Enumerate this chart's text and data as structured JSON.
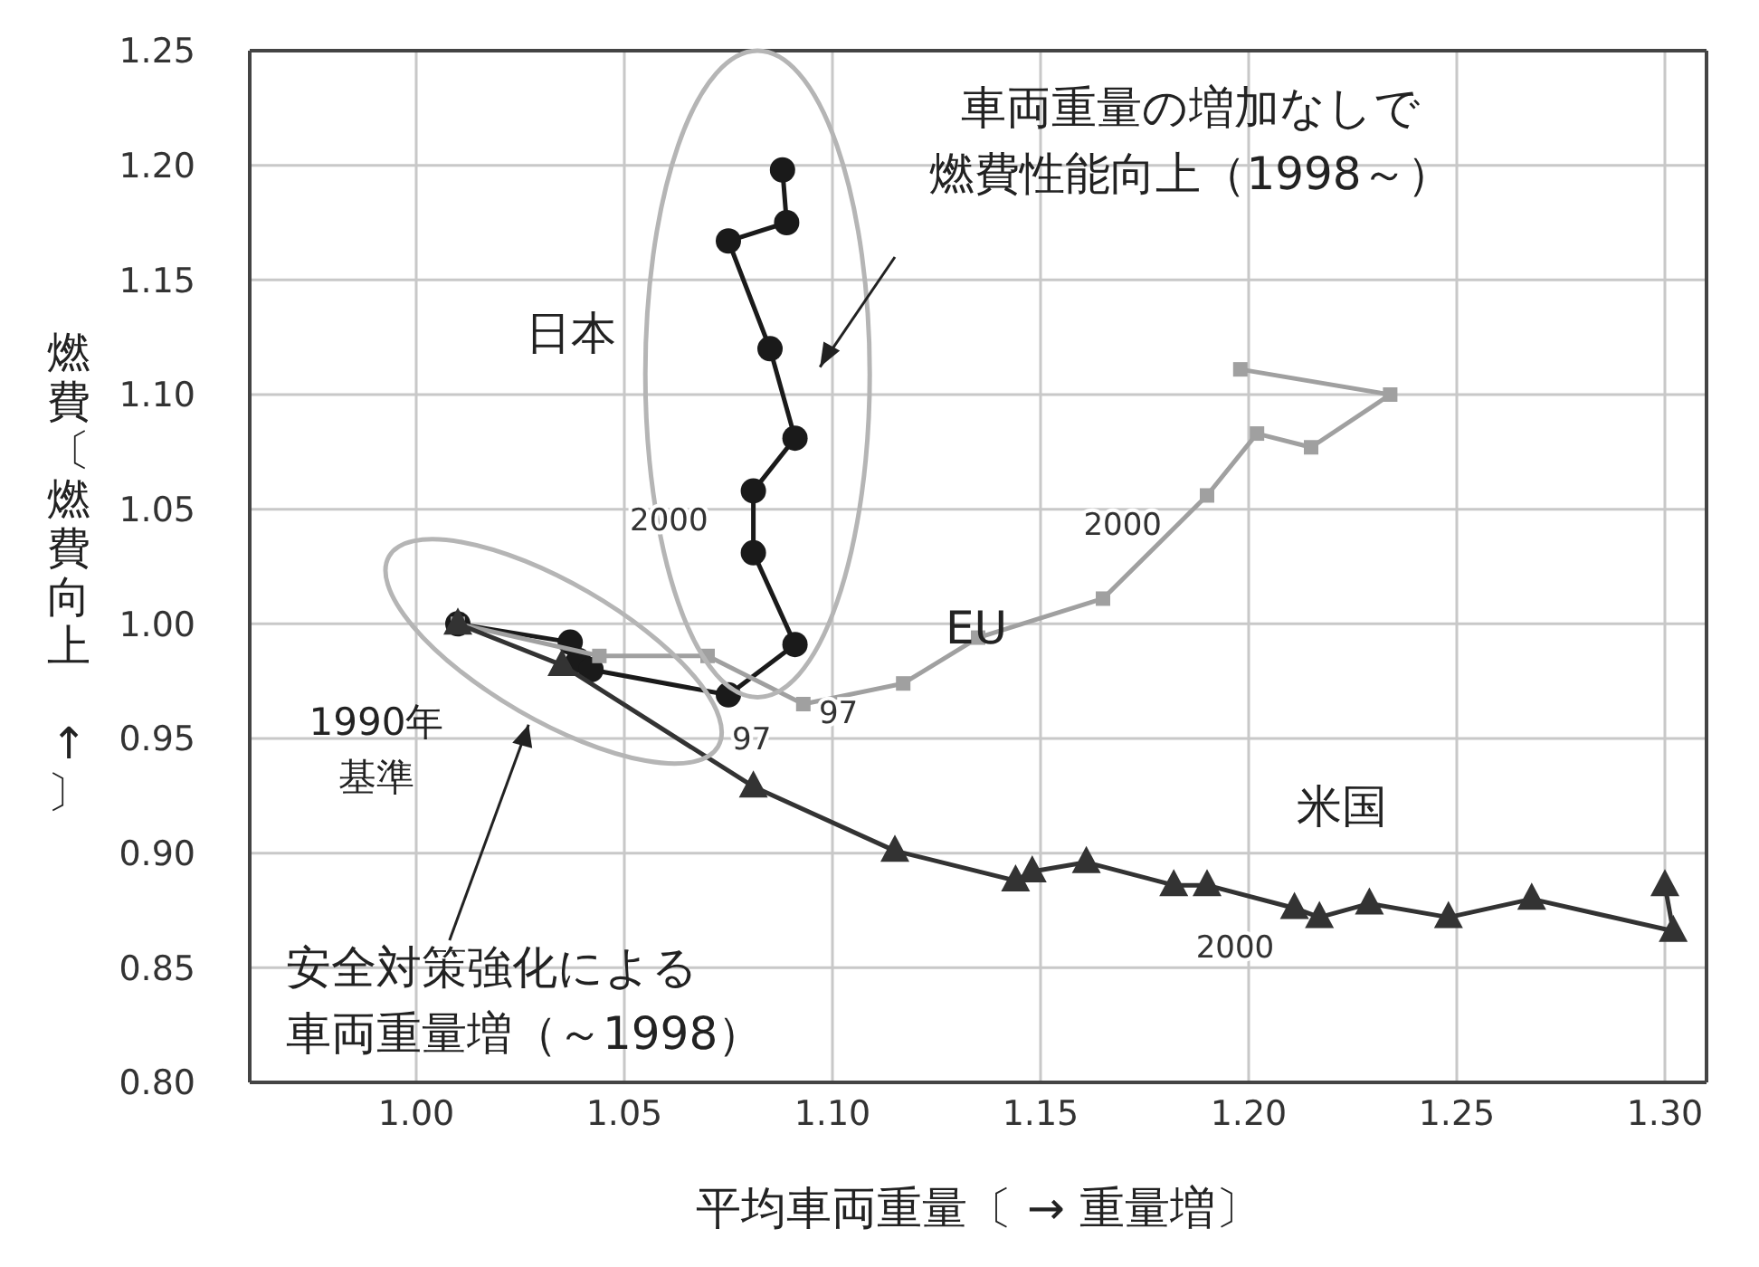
{
  "chart_data": {
    "type": "line",
    "xlabel": "平均車両重量〔 → 重量増〕",
    "ylabel": "燃費〔燃費向上 ↑〕",
    "xlim": [
      0.96,
      1.31
    ],
    "ylim": [
      0.8,
      1.25
    ],
    "xticks": [
      {
        "value": 1.0,
        "label": "1.00"
      },
      {
        "value": 1.05,
        "label": "1.05"
      },
      {
        "value": 1.1,
        "label": "1.10"
      },
      {
        "value": 1.15,
        "label": "1.15"
      },
      {
        "value": 1.2,
        "label": "1.20"
      },
      {
        "value": 1.25,
        "label": "1.25"
      },
      {
        "value": 1.3,
        "label": "1.30"
      }
    ],
    "yticks": [
      {
        "value": 0.8,
        "label": "0.80"
      },
      {
        "value": 0.85,
        "label": "0.85"
      },
      {
        "value": 0.9,
        "label": "0.90"
      },
      {
        "value": 0.95,
        "label": "0.95"
      },
      {
        "value": 1.0,
        "label": "1.00"
      },
      {
        "value": 1.05,
        "label": "1.05"
      },
      {
        "value": 1.1,
        "label": "1.10"
      },
      {
        "value": 1.15,
        "label": "1.15"
      },
      {
        "value": 1.2,
        "label": "1.20"
      },
      {
        "value": 1.25,
        "label": "1.25"
      }
    ],
    "grid": true,
    "legend": false,
    "series": [
      {
        "name": "日本",
        "color": "#1a1a1a",
        "marker": "circle",
        "x": [
          1.01,
          1.037,
          1.039,
          1.042,
          1.075,
          1.091,
          1.081,
          1.081,
          1.091,
          1.085,
          1.075,
          1.089,
          1.088
        ],
        "values": [
          1.0,
          0.992,
          0.984,
          0.98,
          0.969,
          0.991,
          1.031,
          1.058,
          1.081,
          1.12,
          1.167,
          1.175,
          1.198
        ]
      },
      {
        "name": "EU",
        "color": "#a0a0a0",
        "marker": "square",
        "x": [
          1.01,
          1.044,
          1.07,
          1.093,
          1.117,
          1.135,
          1.165,
          1.19,
          1.202,
          1.215,
          1.234,
          1.198
        ],
        "values": [
          1.0,
          0.986,
          0.986,
          0.965,
          0.974,
          0.994,
          1.011,
          1.056,
          1.083,
          1.077,
          1.1,
          1.111
        ]
      },
      {
        "name": "米国",
        "color": "#333333",
        "marker": "triangle",
        "x": [
          1.01,
          1.035,
          1.081,
          1.115,
          1.144,
          1.148,
          1.161,
          1.182,
          1.19,
          1.211,
          1.217,
          1.229,
          1.248,
          1.268,
          1.302,
          1.3
        ],
        "values": [
          1.0,
          0.982,
          0.929,
          0.901,
          0.888,
          0.892,
          0.896,
          0.886,
          0.886,
          0.876,
          0.872,
          0.878,
          0.872,
          0.88,
          0.866,
          0.886
        ]
      }
    ],
    "annotations": [
      {
        "text": "2000",
        "x": 1.081,
        "y": 1.058
      },
      {
        "text": "97",
        "x": 1.075,
        "y": 0.969
      },
      {
        "text": "2000",
        "x": 1.19,
        "y": 1.056
      },
      {
        "text": "97",
        "x": 1.117,
        "y": 0.974
      },
      {
        "text": "2000",
        "x": 1.217,
        "y": 0.872
      },
      "車両重量の増加なしで燃費性能向上（1998～）",
      "安全対策強化による車両重量増（～1998）",
      "1990年基準"
    ]
  }
}
